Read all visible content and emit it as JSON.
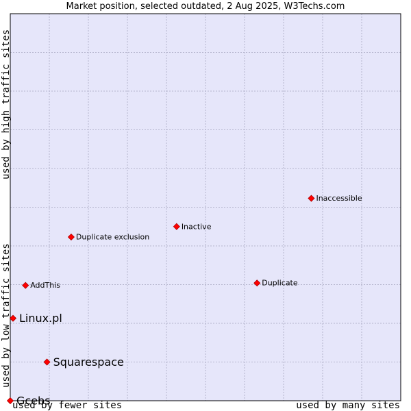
{
  "chart_data": {
    "type": "scatter",
    "title": "Market position, selected outdated, 2 Aug 2025, W3Techs.com",
    "x_axis": {
      "label_low": "used by fewer sites",
      "label_high": "used by many sites",
      "range": [
        0,
        100
      ],
      "grid": true
    },
    "y_axis": {
      "label_low": "used by low traffic sites",
      "label_high": "used by high traffic sites",
      "range": [
        0,
        100
      ],
      "grid": true
    },
    "grid": true,
    "colors": {
      "plot_background": "#e6e6fa",
      "grid": "#b4b4cc",
      "marker": "#ff0000",
      "marker_stroke": "#aa0000"
    },
    "points": [
      {
        "label": "Gcebs",
        "x": 0,
        "y": 0,
        "emphasis": "large"
      },
      {
        "label": "Squarespace",
        "x": 9.4,
        "y": 10,
        "emphasis": "large"
      },
      {
        "label": "Linux.pl",
        "x": 0.7,
        "y": 21.3,
        "emphasis": "large"
      },
      {
        "label": "AddThis",
        "x": 3.9,
        "y": 29.8,
        "emphasis": "small"
      },
      {
        "label": "Duplicate",
        "x": 63.2,
        "y": 30.4,
        "emphasis": "small"
      },
      {
        "label": "Duplicate exclusion",
        "x": 15.6,
        "y": 42.3,
        "emphasis": "small"
      },
      {
        "label": "Inactive",
        "x": 42.6,
        "y": 45,
        "emphasis": "small"
      },
      {
        "label": "Inaccessible",
        "x": 77.1,
        "y": 52.3,
        "emphasis": "small"
      }
    ]
  }
}
